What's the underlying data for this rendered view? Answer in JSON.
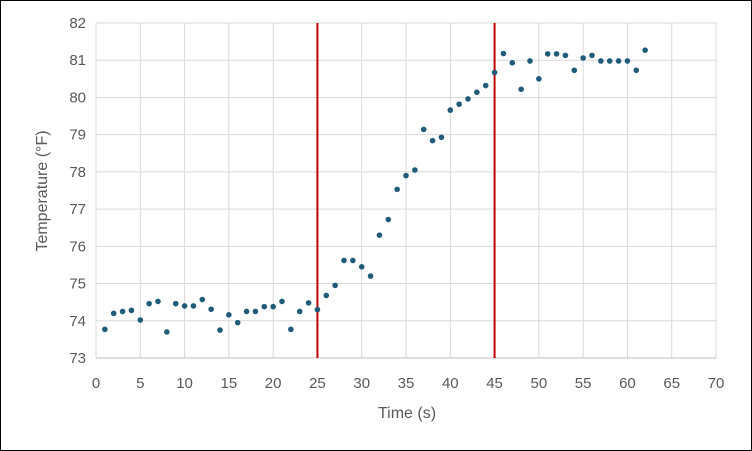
{
  "chart_data": {
    "type": "scatter",
    "xlabel": "Time (s)",
    "ylabel": "Temperature (°F)",
    "xlim": [
      0,
      70
    ],
    "ylim": [
      73,
      82
    ],
    "xticks": [
      0,
      5,
      10,
      15,
      20,
      25,
      30,
      35,
      40,
      45,
      50,
      55,
      60,
      65,
      70
    ],
    "yticks": [
      73,
      74,
      75,
      76,
      77,
      78,
      79,
      80,
      81,
      82
    ],
    "grid": true,
    "legend": "none",
    "marker_color": "#1F5C7A",
    "vertical_lines": {
      "color": "#C00000",
      "x": [
        25,
        45
      ]
    },
    "series": [
      {
        "points": [
          [
            1,
            73.77
          ],
          [
            2,
            74.2
          ],
          [
            3,
            74.25
          ],
          [
            4,
            74.28
          ],
          [
            5,
            74.02
          ],
          [
            6,
            74.46
          ],
          [
            7,
            74.52
          ],
          [
            8,
            73.7
          ],
          [
            9,
            74.46
          ],
          [
            10,
            74.4
          ],
          [
            11,
            74.4
          ],
          [
            12,
            74.57
          ],
          [
            13,
            74.31
          ],
          [
            14,
            73.75
          ],
          [
            15,
            74.16
          ],
          [
            16,
            73.95
          ],
          [
            17,
            74.25
          ],
          [
            18,
            74.25
          ],
          [
            19,
            74.38
          ],
          [
            20,
            74.38
          ],
          [
            21,
            74.52
          ],
          [
            22,
            73.77
          ],
          [
            23,
            74.25
          ],
          [
            24,
            74.48
          ],
          [
            25,
            74.3
          ],
          [
            26,
            74.68
          ],
          [
            27,
            74.95
          ],
          [
            28,
            75.62
          ],
          [
            29,
            75.62
          ],
          [
            30,
            75.45
          ],
          [
            31,
            75.2
          ],
          [
            32,
            76.3
          ],
          [
            33,
            76.72
          ],
          [
            34,
            77.53
          ],
          [
            35,
            77.9
          ],
          [
            36,
            78.05
          ],
          [
            37,
            79.14
          ],
          [
            38,
            78.84
          ],
          [
            39,
            78.93
          ],
          [
            40,
            79.66
          ],
          [
            41,
            79.82
          ],
          [
            42,
            79.96
          ],
          [
            43,
            80.14
          ],
          [
            44,
            80.32
          ],
          [
            45,
            80.67
          ],
          [
            46,
            81.18
          ],
          [
            47,
            80.93
          ],
          [
            48,
            80.22
          ],
          [
            49,
            80.98
          ],
          [
            50,
            80.5
          ],
          [
            51,
            81.17
          ],
          [
            52,
            81.17
          ],
          [
            53,
            81.13
          ],
          [
            54,
            80.73
          ],
          [
            55,
            81.06
          ],
          [
            56,
            81.13
          ],
          [
            57,
            80.98
          ],
          [
            58,
            80.98
          ],
          [
            59,
            80.98
          ],
          [
            60,
            80.98
          ],
          [
            61,
            80.73
          ],
          [
            62,
            81.27
          ]
        ]
      }
    ]
  }
}
